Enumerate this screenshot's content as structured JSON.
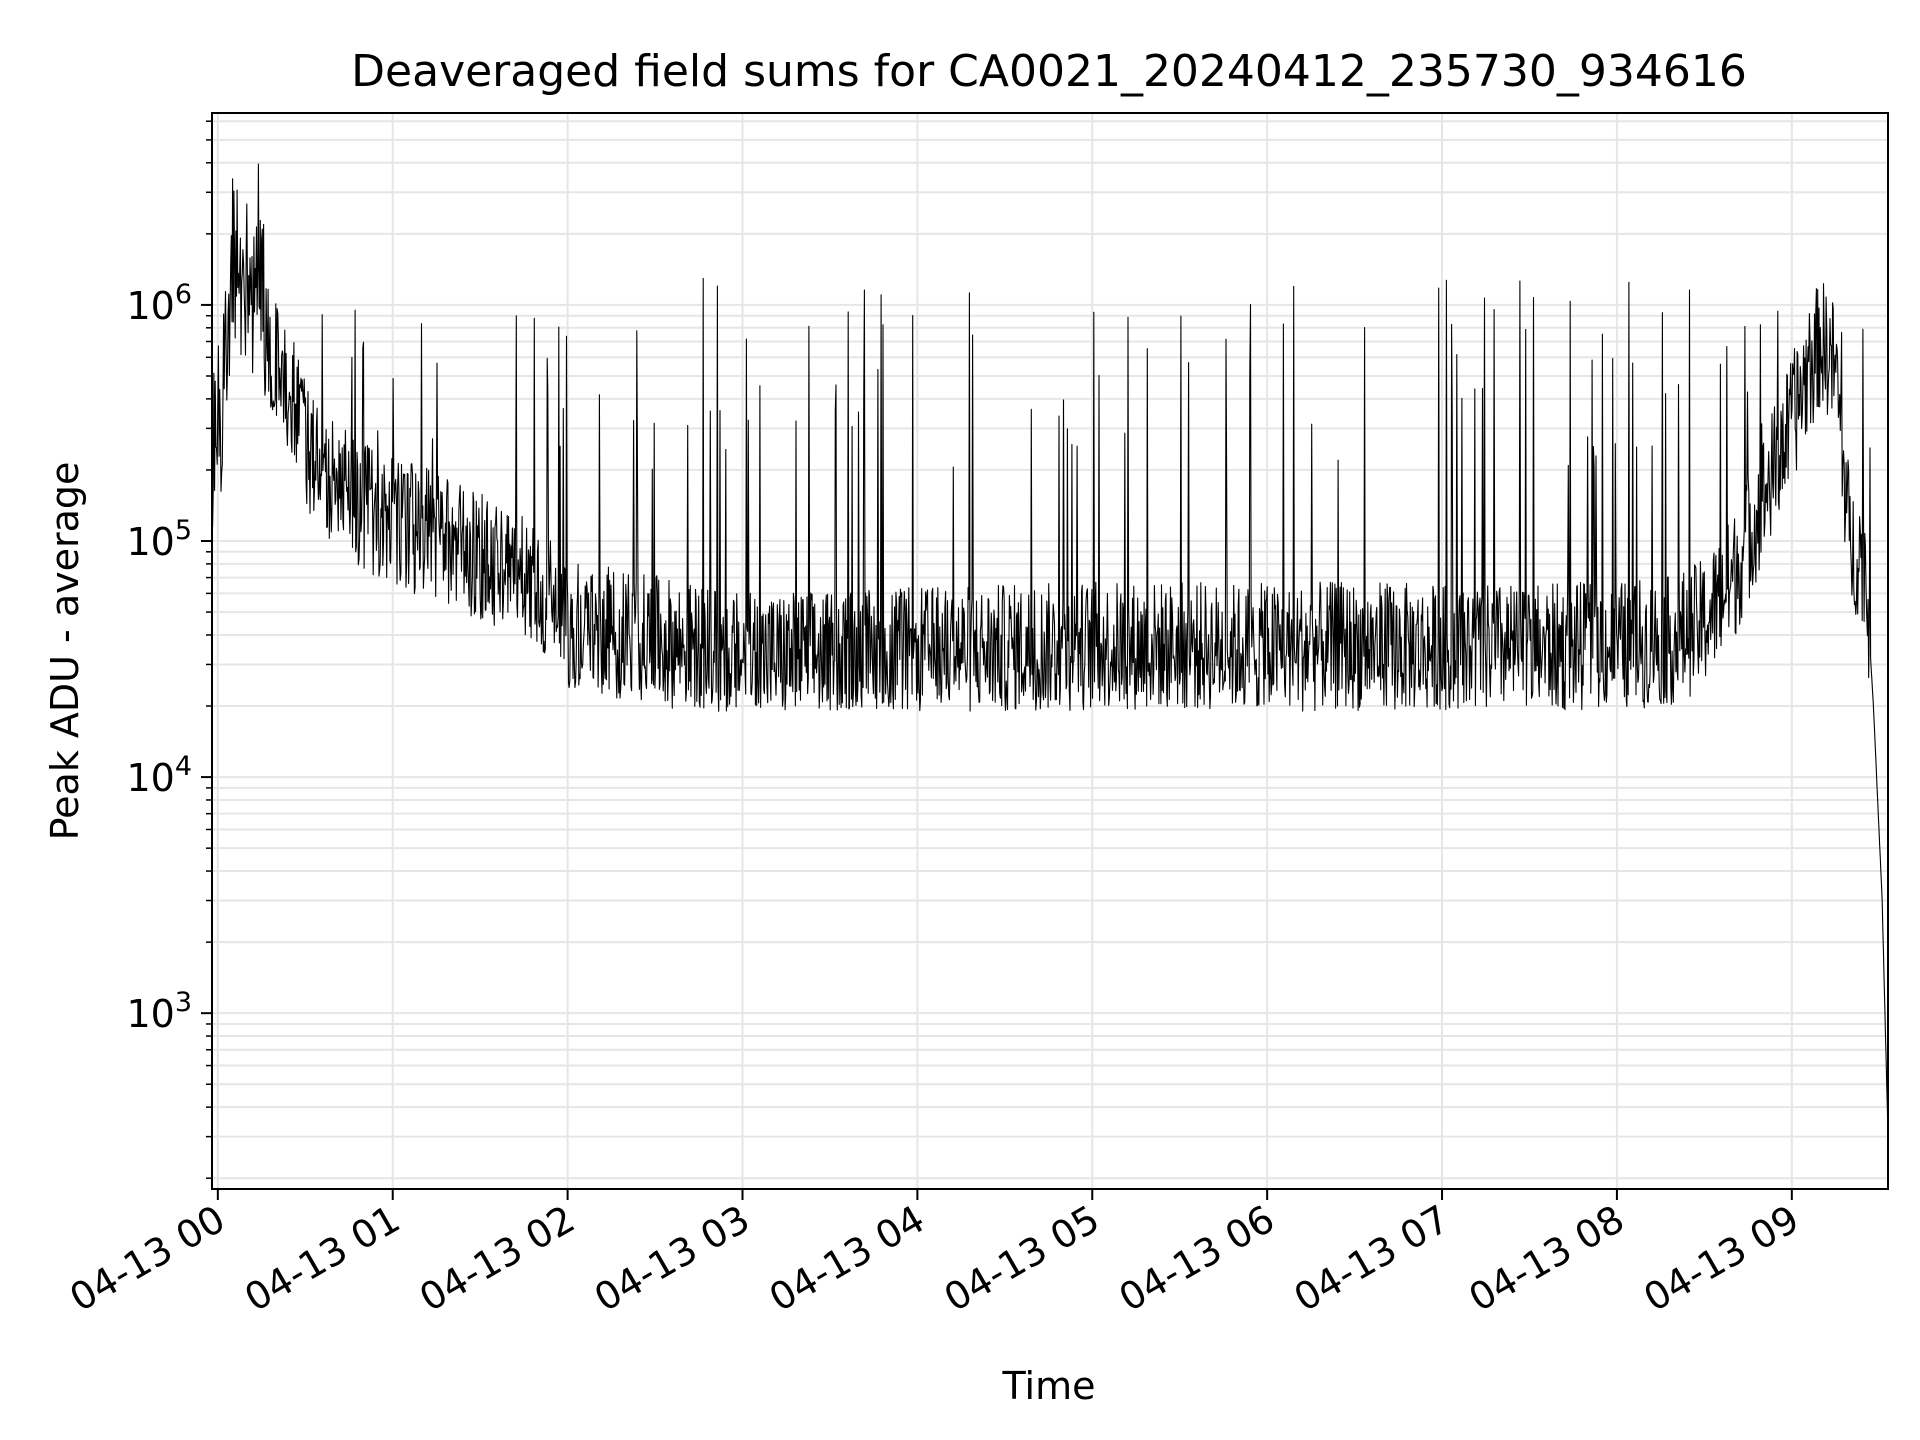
{
  "chart_data": {
    "type": "line",
    "title": "Deaveraged field sums for CA0021_20240412_235730_934616",
    "xlabel": "Time",
    "ylabel": "Peak ADU - average",
    "y_scale": "log",
    "grid": true,
    "grid_minor": true,
    "line_color": "#000000",
    "grid_color": "#e6e6e6",
    "x_ticks": [
      "04-13 00",
      "04-13 01",
      "04-13 02",
      "04-13 03",
      "04-13 04",
      "04-13 05",
      "04-13 06",
      "04-13 07",
      "04-13 08",
      "04-13 09"
    ],
    "x_range": [
      "04-12 23:58",
      "04-13 09:33"
    ],
    "y_tick_exponents": [
      3,
      4,
      5,
      6
    ],
    "y_tick_base": "10",
    "ylim": [
      180,
      6500000
    ],
    "series": [
      {
        "x": [
          "04-12 23:58",
          "04-13 00:00",
          "04-13 00:05",
          "04-13 00:10",
          "04-13 00:15",
          "04-13 00:20",
          "04-13 00:25",
          "04-13 00:30",
          "04-13 00:35",
          "04-13 00:40",
          "04-13 00:45",
          "04-13 00:50",
          "04-13 00:55",
          "04-13 01:00",
          "04-13 01:10",
          "04-13 01:20",
          "04-13 01:30",
          "04-13 01:40",
          "04-13 01:50",
          "04-13 02:00",
          "04-13 02:10",
          "04-13 02:20",
          "04-13 02:30",
          "04-13 02:40",
          "04-13 02:50",
          "04-13 03:00",
          "04-13 03:20",
          "04-13 03:40",
          "04-13 04:00",
          "04-13 04:30",
          "04-13 05:00",
          "04-13 05:30",
          "04-13 06:00",
          "04-13 06:30",
          "04-13 07:00",
          "04-13 07:30",
          "04-13 08:00",
          "04-13 08:20",
          "04-13 08:30",
          "04-13 08:40",
          "04-13 08:50",
          "04-13 09:00",
          "04-13 09:05",
          "04-13 09:10",
          "04-13 09:15",
          "04-13 09:20",
          "04-13 09:25",
          "04-13 09:28",
          "04-13 09:31",
          "04-13 09:33"
        ],
        "y": [
          150000,
          180000,
          1200000,
          1100000,
          800000,
          550000,
          450000,
          250000,
          200000,
          170000,
          160000,
          140000,
          130000,
          120000,
          110000,
          100000,
          85000,
          75000,
          65000,
          45000,
          42000,
          40000,
          38000,
          36000,
          34000,
          32000,
          33000,
          33000,
          34000,
          35000,
          36000,
          36000,
          35000,
          36000,
          35000,
          35000,
          36000,
          38000,
          45000,
          70000,
          150000,
          320000,
          500000,
          700000,
          550000,
          95000,
          85000,
          20000,
          3000,
          300
        ],
        "spikes": {
          "typical_peak": [
            200000,
            1300000
          ],
          "max_peak": 4000000,
          "min_trough": 19000
        }
      }
    ]
  }
}
